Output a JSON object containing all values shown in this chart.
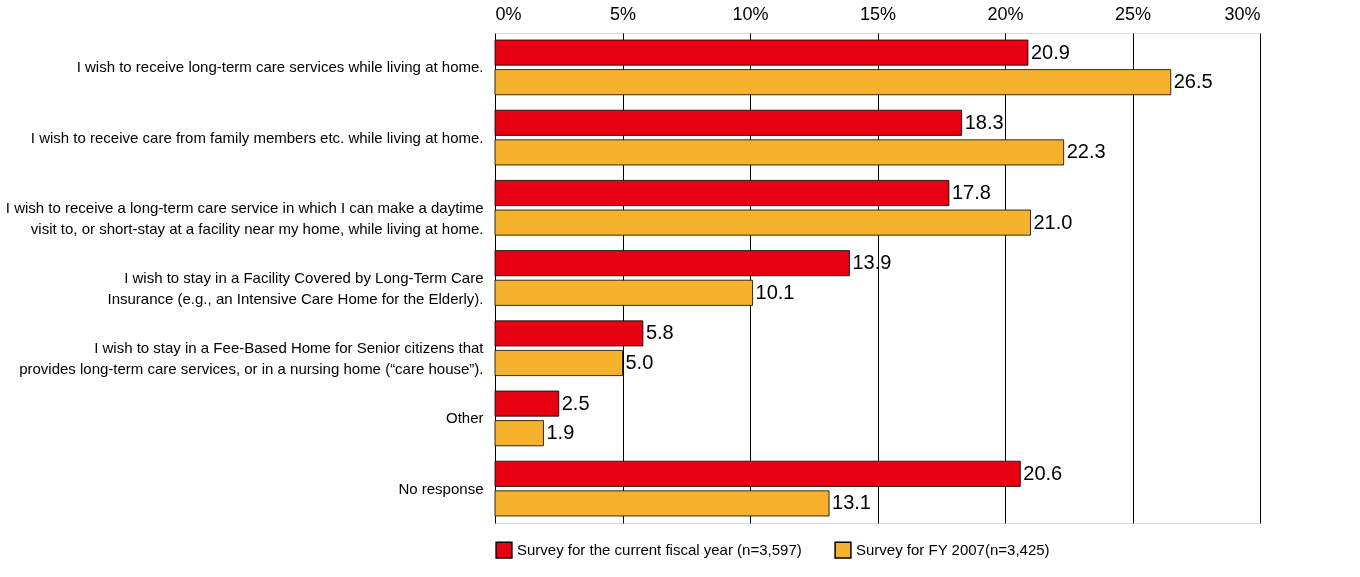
{
  "chart_data": {
    "type": "bar",
    "orientation": "horizontal",
    "categories": [
      "I wish to receive long-term care services while living at home.",
      "I wish to receive care from family members etc. while living at home.",
      "I wish to receive a long-term care service in which I can make a daytime\nvisit to, or short-stay at a facility near my home, while living at home.",
      "I wish to stay in a Facility Covered by Long-Term Care\nInsurance (e.g., an Intensive Care Home for the Elderly).",
      "I wish to stay in a Fee-Based Home for Senior citizens that\nprovides long-term care services, or in a nursing home (“care house”).",
      "Other",
      "No response"
    ],
    "series": [
      {
        "name": "Survey for the current fiscal year (n=3,597)",
        "color": "#e60012",
        "values": [
          20.9,
          18.3,
          17.8,
          13.9,
          5.8,
          2.5,
          20.6
        ],
        "value_labels": [
          "20.9",
          "18.3",
          "17.8",
          "13.9",
          "5.8",
          "2.5",
          "20.6"
        ]
      },
      {
        "name": "Survey for FY 2007(n=3,425)",
        "color": "#f6b22d",
        "values": [
          26.5,
          22.3,
          21.0,
          10.1,
          5.0,
          1.9,
          13.1
        ],
        "value_labels": [
          "26.5",
          "22.3",
          "21.0",
          "10.1",
          "5.0",
          "1.9",
          "13.1"
        ]
      }
    ],
    "xlim": [
      0,
      30
    ],
    "xticks": [
      {
        "value": 0,
        "label": "0%"
      },
      {
        "value": 5,
        "label": "5%"
      },
      {
        "value": 10,
        "label": "10%"
      },
      {
        "value": 15,
        "label": "15%"
      },
      {
        "value": 20,
        "label": "20%"
      },
      {
        "value": 25,
        "label": "25%"
      },
      {
        "value": 30,
        "label": "30%"
      }
    ],
    "grid": "x",
    "legend": "bottom"
  }
}
